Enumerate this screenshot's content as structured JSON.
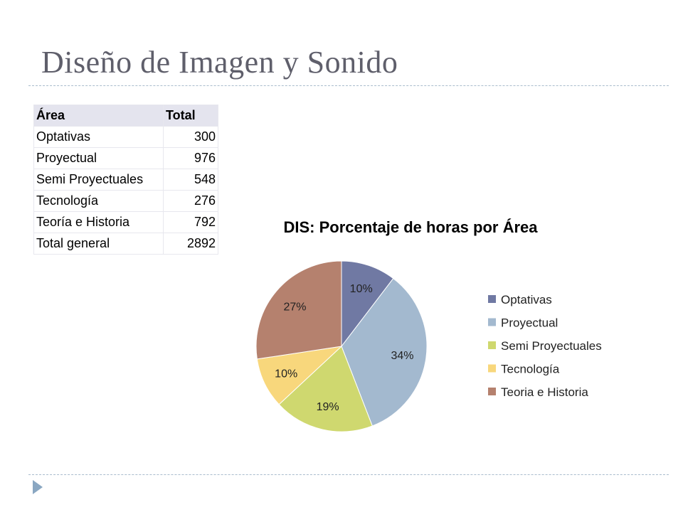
{
  "slide": {
    "title": "Diseño de Imagen y Sonido"
  },
  "table": {
    "headers": [
      "Área",
      "Total"
    ],
    "rows": [
      {
        "label": "Optativas",
        "value": "300"
      },
      {
        "label": "Proyectual",
        "value": "976"
      },
      {
        "label": "Semi Proyectuales",
        "value": "548"
      },
      {
        "label": "Tecnología",
        "value": "276"
      },
      {
        "label": "Teoría e Historia",
        "value": "792"
      }
    ],
    "total": {
      "label": "Total general",
      "value": "2892"
    }
  },
  "chart_data": {
    "type": "pie",
    "title": "DIS: Porcentaje de horas por Área",
    "categories": [
      "Optativas",
      "Proyectual",
      "Semi Proyectuales",
      "Tecnología",
      "Teoria e Historia"
    ],
    "values": [
      300,
      976,
      548,
      276,
      792
    ],
    "data_labels": [
      "10%",
      "34%",
      "19%",
      "10%",
      "27%"
    ],
    "colors": [
      "#7079a3",
      "#a3b9cf",
      "#cfd86f",
      "#f8d77c",
      "#b5816e"
    ],
    "legend_position": "right"
  }
}
